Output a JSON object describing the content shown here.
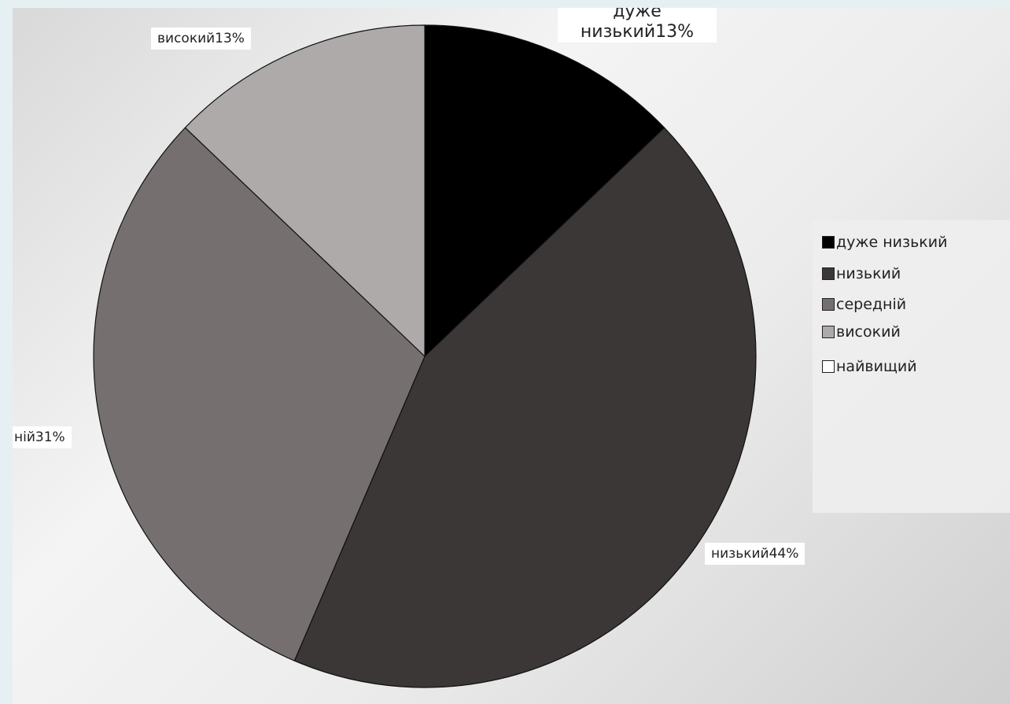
{
  "chart_data": {
    "type": "pie",
    "slices": [
      {
        "label": "дуже низький",
        "value": 13,
        "color": "#000000",
        "data_label": "дуже низький13%"
      },
      {
        "label": "низький",
        "value": 44,
        "color": "#3a3736",
        "data_label": "низький44%"
      },
      {
        "label": "середній",
        "value": 31,
        "color": "#75706f",
        "data_label": "ній31%"
      },
      {
        "label": "високий",
        "value": 13,
        "color": "#aeaaaa",
        "data_label": "високий13%"
      },
      {
        "label": "найвищий",
        "value": 0,
        "color": "#ffffff"
      }
    ],
    "legend": {
      "position": "right",
      "entries": [
        "дуже низький",
        "низький",
        "середній",
        "високий",
        "найвищий"
      ]
    },
    "title": "",
    "value_unit": "%"
  }
}
